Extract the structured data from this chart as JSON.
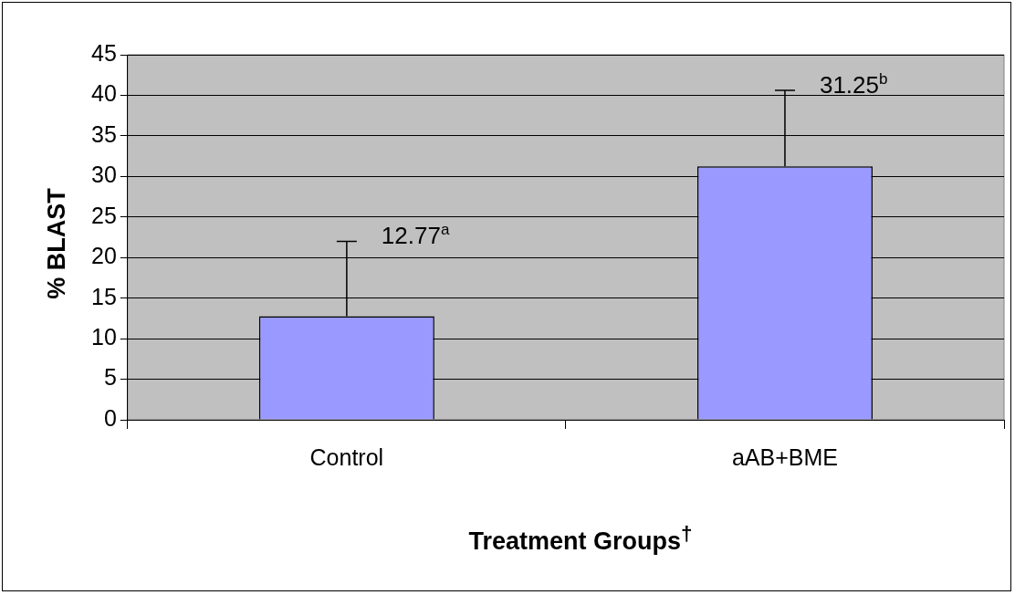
{
  "chart_data": {
    "type": "bar",
    "xlabel": "Treatment Groups$^{†}$",
    "ylabel": "% BLAST",
    "categories": [
      "Control",
      "aAB+BME"
    ],
    "values": [
      12.77,
      31.25
    ],
    "value_labels": [
      "12.77$^{a}$",
      "31.25$^{b}$"
    ],
    "errors": [
      [
        12.77,
        22.0
      ],
      [
        31.25,
        40.6
      ]
    ],
    "color": "#9999ff",
    "ylim": [
      0,
      45
    ],
    "yticks": [
      0,
      5,
      10,
      15,
      20,
      25,
      30,
      35,
      40,
      45
    ],
    "grid": "y",
    "legend": false
  }
}
